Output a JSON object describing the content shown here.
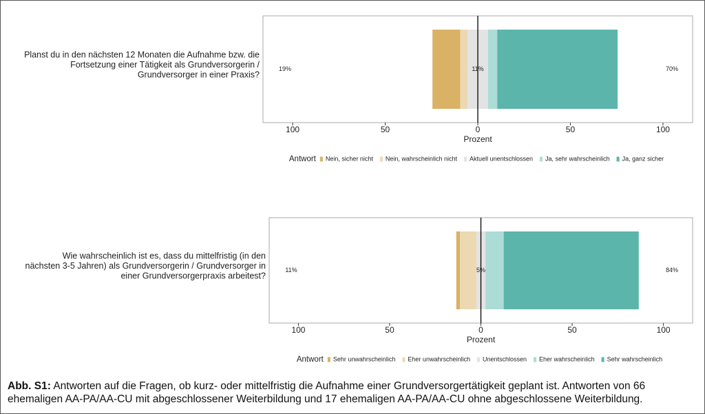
{
  "chart_data": [
    {
      "type": "bar",
      "question": [
        "Planst du in den nächsten 12 Monaten die Aufnahme bzw. die",
        "Fortsetzung einer Tätigkeit als Grundversorgerin /",
        "Grundversorger in einer Praxis?"
      ],
      "series": [
        {
          "name": "Nein, sicher nicht",
          "color": "#d9b265",
          "values": [
            15
          ]
        },
        {
          "name": "Nein, wahrscheinlich nicht",
          "color": "#ecd9b2",
          "values": [
            4
          ]
        },
        {
          "name": "Aktuell unentschlossen",
          "color": "#e3e3e3",
          "values": [
            11
          ]
        },
        {
          "name": "Ja, sehr wahrscheinlich",
          "color": "#acdcd6",
          "values": [
            5
          ]
        },
        {
          "name": "Ja, ganz sicher",
          "color": "#5bb5aa",
          "values": [
            65
          ]
        }
      ],
      "summary": {
        "values": [
          19,
          11,
          70
        ],
        "value_labels": [
          "19%",
          "11%",
          "70%"
        ]
      },
      "xlabel": "Prozent",
      "legend_title": "Antwort",
      "xlim": [
        -116,
        116
      ],
      "xticks": [
        {
          "value": -100,
          "label": "100"
        },
        {
          "value": -50,
          "label": "50"
        },
        0,
        50,
        100
      ]
    },
    {
      "type": "bar",
      "question": [
        "Wie wahrscheinlich ist es, dass du mittelfristig (in den",
        "nächsten 3-5 Jahren) als Grundversorgerin / Grundversorger in",
        "einer Grundversorgerpraxis arbeitest?"
      ],
      "series": [
        {
          "name": "Sehr unwahrscheinlich",
          "color": "#d9b265",
          "values": [
            2
          ]
        },
        {
          "name": "Eher unwahrscheinlich",
          "color": "#ecd9b2",
          "values": [
            9
          ]
        },
        {
          "name": "Unentschlossen",
          "color": "#e3e3e3",
          "values": [
            5
          ]
        },
        {
          "name": "Eher wahrscheinlich",
          "color": "#acdcd6",
          "values": [
            10
          ]
        },
        {
          "name": "Sehr wahrscheinlich",
          "color": "#5bb5aa",
          "values": [
            74
          ]
        }
      ],
      "summary": {
        "values": [
          11,
          5,
          84
        ],
        "value_labels": [
          "11%",
          "5%",
          "84%"
        ]
      },
      "xlabel": "Prozent",
      "legend_title": "Antwort",
      "xlim": [
        -116,
        116
      ],
      "xticks": [
        {
          "value": -100,
          "label": "100"
        },
        {
          "value": -50,
          "label": "50"
        },
        0,
        50,
        100
      ]
    }
  ],
  "caption": {
    "label": "Abb. S1:",
    "text": "Antworten auf die Fragen, ob kurz- oder mittelfristig die Aufnahme einer Grundversorgertätigkeit geplant ist. Antworten von 66 ehemaligen AA-PA/AA-CU mit abgeschlossener Weiterbildung und 17 ehemaligen AA-PA/AA-CU ohne abgeschlossene Weiterbildung."
  }
}
